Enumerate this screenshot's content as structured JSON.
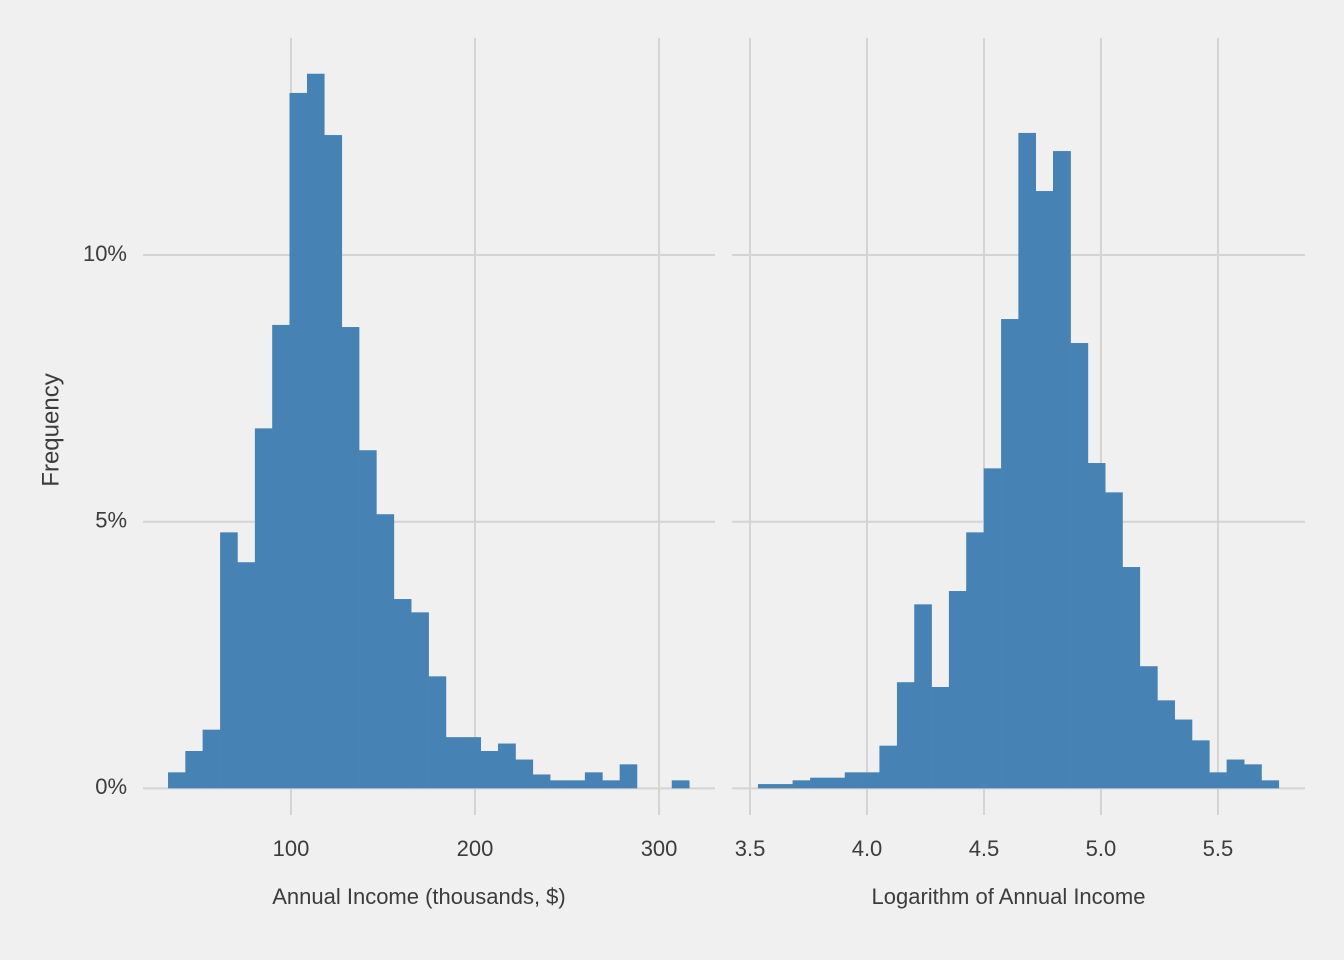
{
  "chart_data": [
    {
      "type": "histogram",
      "x_label": "Annual Income (thousands, $)",
      "y_label": "Frequency",
      "color": "#4682b4",
      "grid": true,
      "bins": [
        33.2,
        42.6,
        52.0,
        61.5,
        70.9,
        80.4,
        89.8,
        99.2,
        108.7,
        118.1,
        127.6,
        137.0,
        146.4,
        155.9,
        165.3,
        174.8,
        184.2,
        193.6,
        203.1,
        212.5,
        222.0,
        231.4,
        240.8,
        250.3,
        259.7,
        269.2,
        278.6,
        288.0,
        297.5,
        306.9,
        316.4
      ],
      "values": [
        0.3,
        0.7,
        1.1,
        4.8,
        4.24,
        6.75,
        8.69,
        13.04,
        13.4,
        12.25,
        8.65,
        6.34,
        5.14,
        3.55,
        3.3,
        2.1,
        0.96,
        0.96,
        0.7,
        0.84,
        0.54,
        0.26,
        0.15,
        0.15,
        0.3,
        0.15,
        0.45,
        0,
        0,
        0.15
      ],
      "xlim": [
        19.6,
        330.4
      ],
      "xticks": [
        100,
        200,
        300
      ],
      "ylim": [
        -0.5,
        14.07
      ],
      "yticks": [
        {
          "value": 0,
          "label": "0%"
        },
        {
          "value": 5,
          "label": "5%"
        },
        {
          "value": 10,
          "label": "10%"
        }
      ]
    },
    {
      "type": "histogram",
      "x_label": "Logarithm of Annual Income",
      "color": "#4682b4",
      "grid": true,
      "bins": [
        3.534,
        3.608,
        3.682,
        3.757,
        3.831,
        3.905,
        3.979,
        4.053,
        4.128,
        4.202,
        4.276,
        4.35,
        4.424,
        4.499,
        4.573,
        4.647,
        4.721,
        4.795,
        4.87,
        4.944,
        5.018,
        5.092,
        5.166,
        5.241,
        5.315,
        5.389,
        5.463,
        5.537,
        5.612,
        5.686,
        5.76
      ],
      "values": [
        0.08,
        0.08,
        0.15,
        0.2,
        0.2,
        0.3,
        0.3,
        0.8,
        1.99,
        3.45,
        1.9,
        3.7,
        4.8,
        6.0,
        8.8,
        12.29,
        11.2,
        11.95,
        8.35,
        6.1,
        5.55,
        4.15,
        2.29,
        1.65,
        1.29,
        0.9,
        0.3,
        0.54,
        0.45,
        0.15
      ],
      "xlim": [
        3.423,
        5.872
      ],
      "xticks": [
        3.5,
        {
          "value": 4,
          "label": "4.0"
        },
        4.5,
        {
          "value": 5,
          "label": "5.0"
        },
        5.5
      ],
      "ylim": [
        -0.5,
        14.07
      ]
    }
  ]
}
